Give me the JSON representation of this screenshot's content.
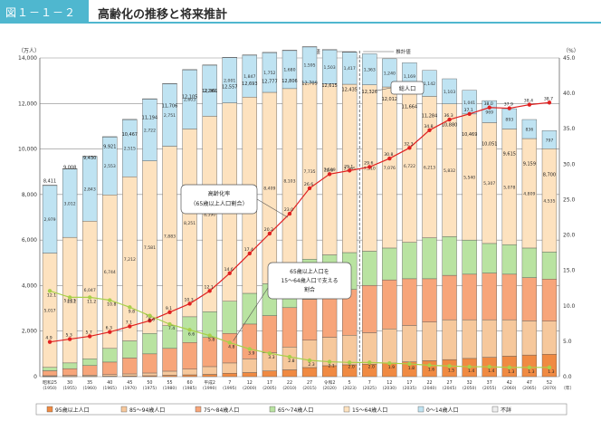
{
  "header": {
    "fig_no": "図１－１－２",
    "title": "高齢化の推移と将来推計"
  },
  "colors": {
    "age95": "#f08a42",
    "age85": "#f6c89c",
    "age75": "#f7a57a",
    "age65": "#b9e3a1",
    "age15": "#fde2bf",
    "age0": "#bfe3f2",
    "unknown": "#eeeeee",
    "rate_line": "#e02020",
    "share_line": "#a8d04a",
    "accent": "#4fb7cf"
  },
  "chart_data": {
    "type": "bar",
    "title": "高齢化の推移と将来推計",
    "ylabel_left": "（万人）",
    "ylabel_right": "（%）",
    "ylim_left": [
      0,
      14000
    ],
    "ylim_right": [
      0,
      45
    ],
    "left_ticks": [
      "0",
      "2,000",
      "4,000",
      "6,000",
      "8,000",
      "10,000",
      "12,000",
      "14,000"
    ],
    "right_ticks": [
      "0.0",
      "5.0",
      "10.0",
      "15.0",
      "20.0",
      "25.0",
      "30.0",
      "35.0",
      "40.0",
      "45.0"
    ],
    "annot_actual": "実績値",
    "annot_proj": "推計値",
    "year_unit": "（年）",
    "categories": [
      [
        "昭和25",
        "(1950)"
      ],
      [
        "30",
        "(1955)"
      ],
      [
        "35",
        "(1960)"
      ],
      [
        "40",
        "(1965)"
      ],
      [
        "45",
        "(1970)"
      ],
      [
        "50",
        "(1975)"
      ],
      [
        "55",
        "(1980)"
      ],
      [
        "60",
        "(1985)"
      ],
      [
        "平成2",
        "(1990)"
      ],
      [
        "7",
        "(1995)"
      ],
      [
        "12",
        "(2000)"
      ],
      [
        "17",
        "(2005)"
      ],
      [
        "22",
        "(2010)"
      ],
      [
        "27",
        "(2015)"
      ],
      [
        "令和2",
        "(2020)"
      ],
      [
        "5",
        "(2023)"
      ],
      [
        "7",
        "(2025)"
      ],
      [
        "12",
        "(2030)"
      ],
      [
        "17",
        "(2035)"
      ],
      [
        "22",
        "(2040)"
      ],
      [
        "27",
        "(2045)"
      ],
      [
        "32",
        "(2050)"
      ],
      [
        "37",
        "(2055)"
      ],
      [
        "42",
        "(2060)"
      ],
      [
        "47",
        "(2065)"
      ],
      [
        "52",
        "(2070)"
      ]
    ],
    "totals": [
      "8,411",
      "9,008",
      "9,430",
      "9,921",
      "10,467",
      "11,194",
      "11,706",
      "12,105",
      "12,361",
      "12,557",
      "12,693",
      "12,777",
      "12,806",
      "12,709",
      "12,615",
      "12,435",
      "12,326",
      "12,012",
      "11,664",
      "11,284",
      "10,880",
      "10,469",
      "10,051",
      "9,615",
      "9,159",
      "8,700"
    ],
    "total_values": [
      8411,
      9008,
      9430,
      9921,
      10467,
      11194,
      11706,
      12105,
      12361,
      12557,
      12693,
      12777,
      12806,
      12709,
      12615,
      12435,
      12326,
      12012,
      11664,
      11284,
      10880,
      10469,
      10051,
      9615,
      9159,
      8700
    ],
    "projection_start_index": 16,
    "series": [
      {
        "name": "95歳以上人口",
        "key": "age95",
        "values": [
          10,
          12,
          15,
          20,
          30,
          40,
          60,
          80,
          100,
          150,
          180,
          250,
          300,
          400,
          480,
          520,
          550,
          600,
          650,
          700,
          750,
          800,
          850,
          900,
          950,
          985
        ]
      },
      {
        "name": "85～94歳人口",
        "key": "age85",
        "values": [
          30,
          40,
          50,
          70,
          90,
          120,
          180,
          250,
          340,
          450,
          600,
          800,
          1000,
          1200,
          1250,
          1300,
          1380,
          1500,
          1600,
          1700,
          1750,
          1700,
          1650,
          1600,
          1500,
          1450
        ]
      },
      {
        "name": "75～84歳人口",
        "key": "age75",
        "values": [
          220,
          300,
          420,
          550,
          700,
          840,
          1000,
          1170,
          1280,
          1300,
          1530,
          1630,
          1730,
          1800,
          1880,
          2010,
          2080,
          2150,
          2050,
          1900,
          1950,
          2000,
          2050,
          2000,
          1900,
          1850
        ]
      },
      {
        "name": "65～74歳人口",
        "key": "age65",
        "values": [
          150,
          250,
          300,
          600,
          750,
          900,
          1000,
          1130,
          1130,
          1410,
          1350,
          1400,
          1520,
          1760,
          1740,
          1620,
          1500,
          1400,
          1600,
          1800,
          1700,
          1500,
          1300,
          1300,
          1300,
          1190
        ]
      },
      {
        "name": "15～64歳人口",
        "key": "age15",
        "values": [
          5017,
          5517,
          6047,
          6744,
          7212,
          7581,
          7883,
          8251,
          8590,
          8716,
          8622,
          8409,
          8103,
          7735,
          7509,
          7395,
          7310,
          7076,
          6722,
          6213,
          5832,
          5540,
          5307,
          5078,
          4809,
          4535
        ]
      },
      {
        "name": "0～14歳人口",
        "key": "age0",
        "values": [
          2979,
          3012,
          2843,
          2553,
          2515,
          2722,
          2751,
          2603,
          2249,
          2001,
          1847,
          1752,
          1680,
          1595,
          1503,
          1417,
          1363,
          1240,
          1169,
          1142,
          1103,
          1041,
          969,
          893,
          836,
          797
        ]
      },
      {
        "name": "不詳",
        "key": "unknown",
        "values": [
          5,
          5,
          5,
          5,
          5,
          5,
          5,
          5,
          5,
          5,
          5,
          5,
          5,
          5,
          5,
          5,
          0,
          0,
          0,
          0,
          0,
          0,
          0,
          0,
          0,
          0
        ]
      }
    ],
    "bar_labels": {
      "age0": [
        "2,979",
        "3,012",
        "2,843",
        "2,553",
        "2,515",
        "2,722",
        "2,751",
        "2,603",
        "2,249",
        "2,001",
        "1,847",
        "1,752",
        "1,680",
        "1,595",
        "1,503",
        "1,417",
        "1,363",
        "1,240",
        "1,169",
        "1,142",
        "1,103",
        "1,041",
        "969",
        "893",
        "836",
        "797"
      ],
      "age15": [
        "5,017",
        "5,517",
        "6,047",
        "6,744",
        "7,212",
        "7,581",
        "7,883",
        "8,251",
        "8,590",
        "8,716",
        "8,622",
        "8,409",
        "8,103",
        "7,735",
        "7,509",
        "7,395",
        "7,310",
        "7,076",
        "6,722",
        "6,213",
        "5,832",
        "5,540",
        "5,307",
        "5,078",
        "4,809",
        "4,535"
      ]
    },
    "lines": [
      {
        "name": "高齢化率（65歳以上人口割合）",
        "key": "rate",
        "axis": "right",
        "values": [
          4.9,
          5.3,
          5.7,
          6.3,
          7.1,
          7.9,
          9.1,
          10.3,
          12.1,
          14.6,
          17.4,
          20.2,
          23.0,
          26.6,
          28.6,
          29.1,
          29.6,
          30.8,
          32.3,
          34.8,
          36.3,
          37.1,
          38.0,
          37.9,
          38.4,
          38.7
        ]
      },
      {
        "name": "65歳以上人口を15～64歳人口で支える割合",
        "key": "share",
        "axis": "right",
        "values": [
          12.1,
          11.2,
          11.2,
          10.8,
          9.8,
          8.6,
          7.4,
          6.6,
          5.8,
          4.8,
          3.9,
          3.3,
          2.8,
          2.3,
          2.1,
          2.0,
          2.0,
          1.9,
          1.8,
          1.6,
          1.5,
          1.4,
          1.4,
          1.3,
          1.3,
          1.3
        ]
      }
    ],
    "callouts": {
      "total": "総人口",
      "rate": [
        "高齢化率",
        "（65歳以上人口割合）"
      ],
      "share": [
        "65歳以上人口を",
        "15～64歳人口で支える",
        "割合"
      ]
    },
    "legend": [
      "95歳以上人口",
      "85～94歳人口",
      "75～84歳人口",
      "65～74歳人口",
      "15～64歳人口",
      "0～14歳人口",
      "不詳"
    ],
    "legend_position": "bottom"
  }
}
